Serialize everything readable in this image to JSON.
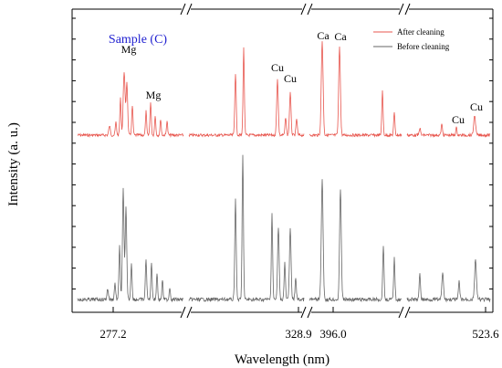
{
  "chart_data": {
    "type": "line",
    "panel_label": "Sample (C)",
    "xlabel": "Wavelength (nm)",
    "ylabel": "Intensity (a. u.)",
    "x_tick_labels": [
      "277.2",
      "328.9",
      "396.0",
      "523.6"
    ],
    "legend": {
      "placement": "top-right",
      "entries": [
        "After cleaning",
        "Before cleaning"
      ]
    },
    "axis_break_marks": 3,
    "element_labels": [
      "Mg",
      "Mg",
      "Cu",
      "Cu",
      "Ca",
      "Ca",
      "Cu",
      "Cu"
    ],
    "series": [
      {
        "name": "After cleaning",
        "color": "#e8574f"
      },
      {
        "name": "Before cleaning",
        "color": "#666666"
      }
    ],
    "segments": [
      {
        "x_range": [
          275.0,
          280.0
        ],
        "tick_label": "277.2"
      },
      {
        "x_range": [
          324.0,
          329.5
        ],
        "tick_label": "328.9"
      },
      {
        "x_range": [
          392.0,
          400.0
        ]
      },
      {
        "x_range": [
          518.0,
          525.0
        ],
        "tick_label": "523.6"
      }
    ]
  },
  "colors": {
    "after": "#e8574f",
    "before": "#666666",
    "panel_label": "#1f1fd0",
    "axis": "#000000"
  }
}
